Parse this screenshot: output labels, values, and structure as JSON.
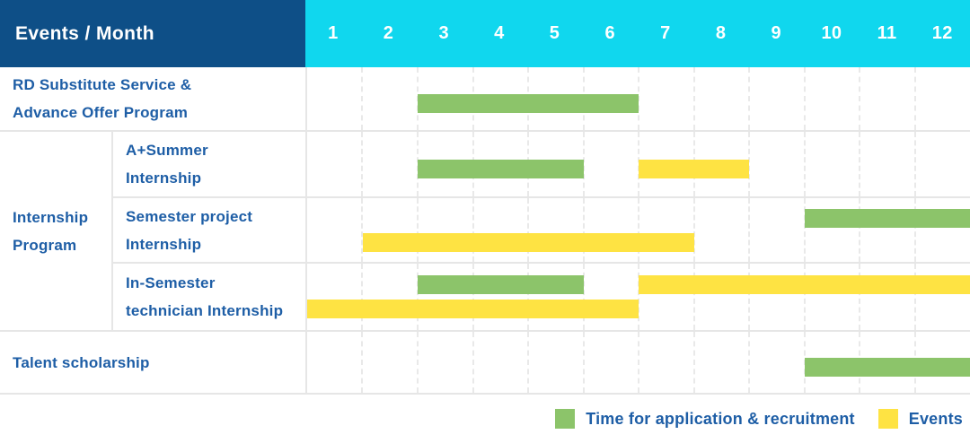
{
  "header": {
    "corner_label": "Events / Month",
    "months": [
      "1",
      "2",
      "3",
      "4",
      "5",
      "6",
      "7",
      "8",
      "9",
      "10",
      "11",
      "12"
    ]
  },
  "colors": {
    "header_bg": "#0e4f87",
    "months_bg": "#10d7ee",
    "label_text": "#1e5ea6",
    "grid_strong": "#e6e6e6",
    "grid_dash": "#e9e9e9",
    "header_text": "#ffffff"
  },
  "chart_data": {
    "type": "bar",
    "subtype": "gantt",
    "title": "Events / Month",
    "x": {
      "label": "Month",
      "ticks": [
        1,
        2,
        3,
        4,
        5,
        6,
        7,
        8,
        9,
        10,
        11,
        12
      ],
      "range_months": [
        1,
        12
      ]
    },
    "legend_position": "bottom-right",
    "series": [
      {
        "key": "application",
        "label": "Time for application & recruitment",
        "color": "#8cc46a"
      },
      {
        "key": "events",
        "label": "Events",
        "color": "#fee343"
      }
    ],
    "rows": [
      {
        "label": "RD Substitute Service & Advance Offer Program",
        "label_lines": [
          "RD Substitute Service &",
          "Advance Offer Program"
        ],
        "group": "",
        "lanes": [
          [
            {
              "series": "application",
              "start_month": 3,
              "end_month": 6
            }
          ]
        ]
      },
      {
        "label": "A+Summer Internship",
        "label_lines": [
          "A+Summer",
          "Internship"
        ],
        "group": "Internship Program",
        "lanes": [
          [
            {
              "series": "application",
              "start_month": 3,
              "end_month": 5
            },
            {
              "series": "events",
              "start_month": 7,
              "end_month": 8
            }
          ]
        ]
      },
      {
        "label": "Semester project Internship",
        "label_lines": [
          "Semester project",
          "Internship"
        ],
        "group": "Internship Program",
        "lanes": [
          [
            {
              "series": "application",
              "start_month": 10,
              "end_month": 12
            }
          ],
          [
            {
              "series": "events",
              "start_month": 2,
              "end_month": 7
            }
          ]
        ]
      },
      {
        "label": "In-Semester technician Internship",
        "label_lines": [
          "In-Semester",
          "technician Internship"
        ],
        "group": "Internship Program",
        "lanes": [
          [
            {
              "series": "application",
              "start_month": 3,
              "end_month": 5
            },
            {
              "series": "events",
              "start_month": 7,
              "end_month": 12
            }
          ],
          [
            {
              "series": "events",
              "start_month": 1,
              "end_month": 6
            }
          ]
        ]
      },
      {
        "label": "Talent scholarship",
        "label_lines": [
          "Talent scholarship"
        ],
        "group": "",
        "lanes": [
          [
            {
              "series": "application",
              "start_month": 10,
              "end_month": 12
            }
          ]
        ]
      }
    ]
  },
  "legend": {
    "items": [
      {
        "key": "application",
        "label": "Time for application & recruitment"
      },
      {
        "key": "events",
        "label": "Events"
      }
    ]
  }
}
